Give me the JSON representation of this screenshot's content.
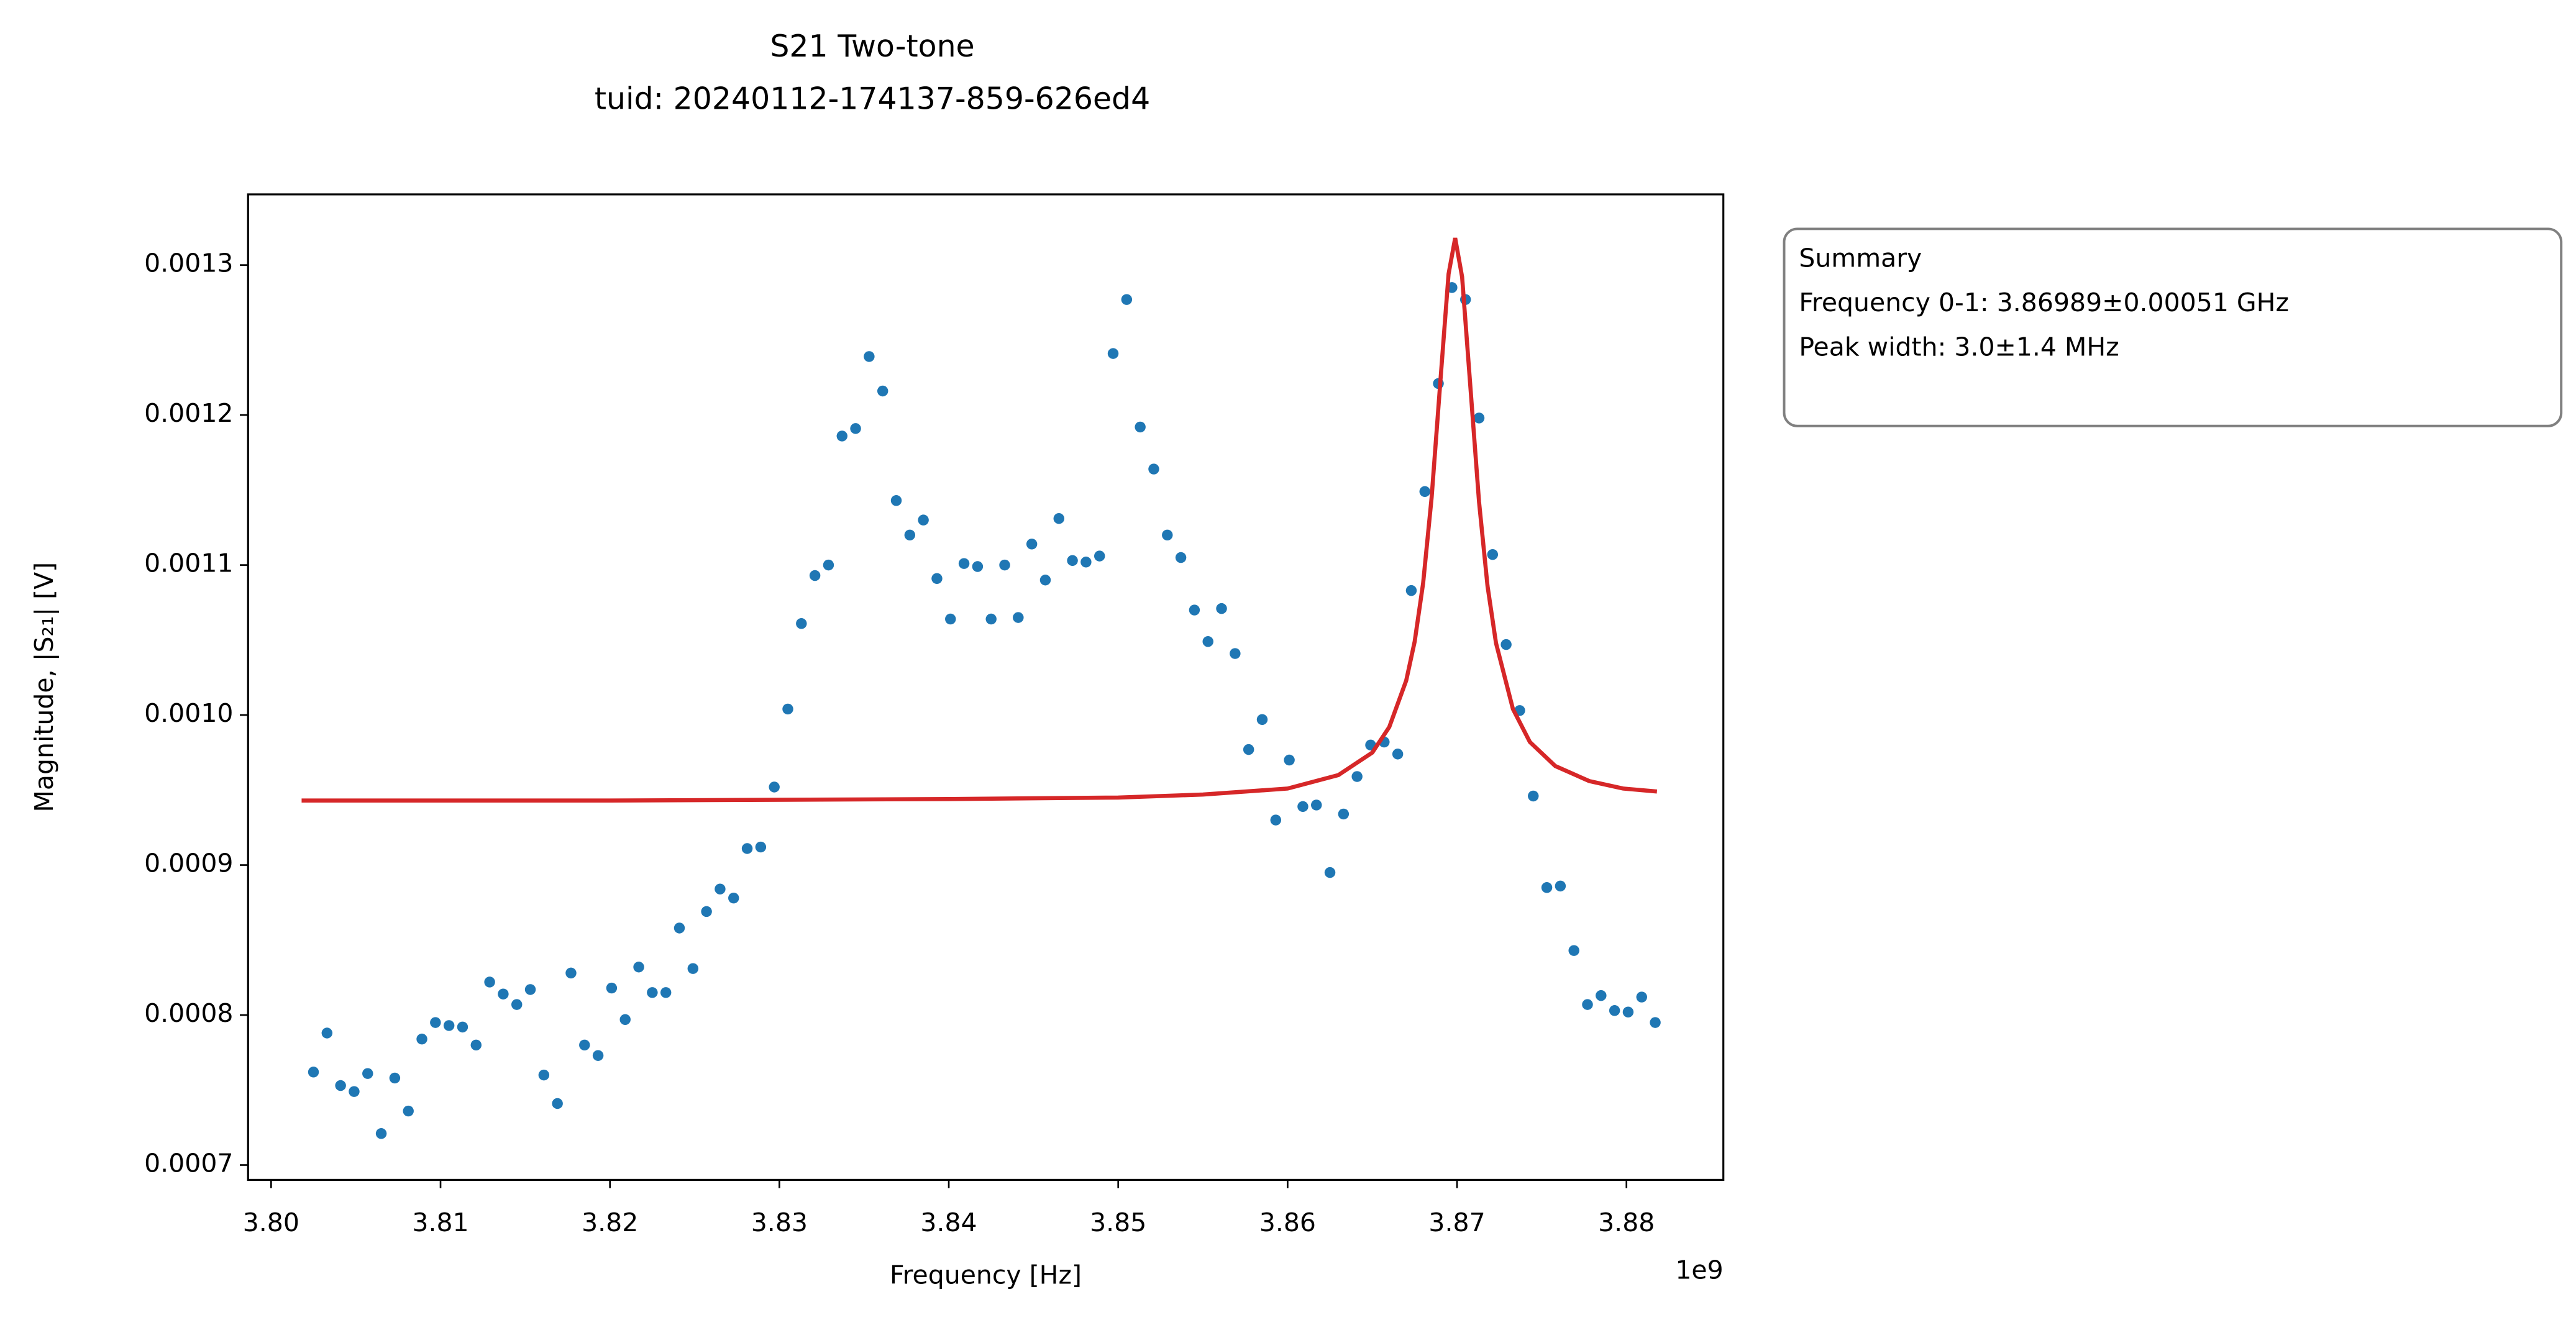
{
  "chart_data": {
    "type": "scatter",
    "title": "S21 Two-tone",
    "subtitle": "tuid: 20240112-174137-859-626ed4",
    "xlabel": "Frequency [Hz]",
    "ylabel": "Magnitude, |S₂₁| [V]",
    "x_offset_label": "1e9",
    "annotation": {
      "lines": [
        "Summary",
        "Frequency 0-1: 3.86989±0.00051 GHz",
        "Peak width: 3.0±1.4 MHz"
      ]
    },
    "xlim": [
      3798640000,
      3885720000
    ],
    "ylim": [
      0.0006901,
      0.0013471
    ],
    "xticks": [
      {
        "value": 3800000000,
        "label": "3.80"
      },
      {
        "value": 3810000000,
        "label": "3.81"
      },
      {
        "value": 3820000000,
        "label": "3.82"
      },
      {
        "value": 3830000000,
        "label": "3.83"
      },
      {
        "value": 3840000000,
        "label": "3.84"
      },
      {
        "value": 3850000000,
        "label": "3.85"
      },
      {
        "value": 3860000000,
        "label": "3.86"
      },
      {
        "value": 3870000000,
        "label": "3.87"
      },
      {
        "value": 3880000000,
        "label": "3.88"
      }
    ],
    "yticks": [
      0.0007,
      0.0008,
      0.0009,
      {
        "value": 0.001,
        "label": "0.0010"
      },
      0.0011,
      0.0012,
      0.0013
    ],
    "grid": false,
    "series": [
      {
        "type": "scatter",
        "color": "#1f77b4",
        "x": [
          3802500000,
          3803300000,
          3804100000,
          3804900000,
          3805700000,
          3806500000,
          3807300000,
          3808100000,
          3808900000,
          3809700000,
          3810500000,
          3811300000,
          3812100000,
          3812900000,
          3813700000,
          3814500000,
          3815300000,
          3816100000,
          3816900000,
          3817700000,
          3818500000,
          3819300000,
          3820100000,
          3820900000,
          3821700000,
          3822500000,
          3823300000,
          3824100000,
          3824900000,
          3825700000,
          3826500000,
          3827300000,
          3828100000,
          3828900000,
          3829700000,
          3830500000,
          3831300000,
          3832100000,
          3832900000,
          3833700000,
          3834500000,
          3835300000,
          3836100000,
          3836900000,
          3837700000,
          3838500000,
          3839300000,
          3840100000,
          3840900000,
          3841700000,
          3842500000,
          3843300000,
          3844100000,
          3844900000,
          3845700000,
          3846500000,
          3847300000,
          3848100000,
          3848900000,
          3849700000,
          3850500000,
          3851300000,
          3852100000,
          3852900000,
          3853700000,
          3854500000,
          3855300000,
          3856100000,
          3856900000,
          3857700000,
          3858500000,
          3859300000,
          3860100000,
          3860900000,
          3861700000,
          3862500000,
          3863300000,
          3864100000,
          3864900000,
          3865700000,
          3866500000,
          3867300000,
          3868100000,
          3868900000,
          3869700000,
          3870500000,
          3871300000,
          3872100000,
          3872900000,
          3873700000,
          3874500000,
          3875300000,
          3876100000,
          3876900000,
          3877700000,
          3878500000,
          3879300000,
          3880100000,
          3880900000,
          3881700000
        ],
        "values": [
          0.000762,
          0.000788,
          0.000753,
          0.000749,
          0.000761,
          0.000721,
          0.000758,
          0.000736,
          0.000784,
          0.000795,
          0.000793,
          0.000792,
          0.00078,
          0.000822,
          0.000814,
          0.000807,
          0.000817,
          0.00076,
          0.000741,
          0.000828,
          0.00078,
          0.000773,
          0.000818,
          0.000797,
          0.000832,
          0.000815,
          0.000815,
          0.000858,
          0.000831,
          0.000869,
          0.000884,
          0.000878,
          0.000911,
          0.000912,
          0.000952,
          0.001004,
          0.001061,
          0.001093,
          0.0011,
          0.001186,
          0.001191,
          0.001239,
          0.001216,
          0.001143,
          0.00112,
          0.00113,
          0.001091,
          0.001064,
          0.001101,
          0.001099,
          0.001064,
          0.0011,
          0.001065,
          0.001114,
          0.00109,
          0.001131,
          0.001103,
          0.001102,
          0.001106,
          0.001241,
          0.001277,
          0.001192,
          0.001164,
          0.00112,
          0.001105,
          0.00107,
          0.001049,
          0.001071,
          0.001041,
          0.000977,
          0.000997,
          0.00093,
          0.00097,
          0.000939,
          0.00094,
          0.000895,
          0.000934,
          0.000959,
          0.00098,
          0.000982,
          0.000974,
          0.001083,
          0.001149,
          0.001221,
          0.001285,
          0.001277,
          0.001198,
          0.001107,
          0.001047,
          0.001003,
          0.000946,
          0.000885,
          0.000886,
          0.000843,
          0.000807,
          0.000813,
          0.000803,
          0.000802,
          0.000812,
          0.000795
        ]
      },
      {
        "type": "line",
        "color": "#d62728",
        "x": [
          3801800000,
          3820000000,
          3840000000,
          3850000000,
          3855000000,
          3860000000,
          3863000000,
          3865000000,
          3866000000,
          3867000000,
          3867500000,
          3868000000,
          3868500000,
          3869000000,
          3869500000,
          3869890000,
          3870300000,
          3870800000,
          3871300000,
          3871800000,
          3872300000,
          3873300000,
          3874300000,
          3875800000,
          3877800000,
          3879800000,
          3881800000
        ],
        "values": [
          0.000943,
          0.000943,
          0.000944,
          0.000945,
          0.000947,
          0.000951,
          0.00096,
          0.000975,
          0.000992,
          0.001023,
          0.001049,
          0.001088,
          0.001145,
          0.00122,
          0.001294,
          0.001318,
          0.001292,
          0.001217,
          0.001142,
          0.001086,
          0.001048,
          0.001004,
          0.000982,
          0.000966,
          0.000956,
          0.000951,
          0.000949
        ]
      }
    ]
  }
}
